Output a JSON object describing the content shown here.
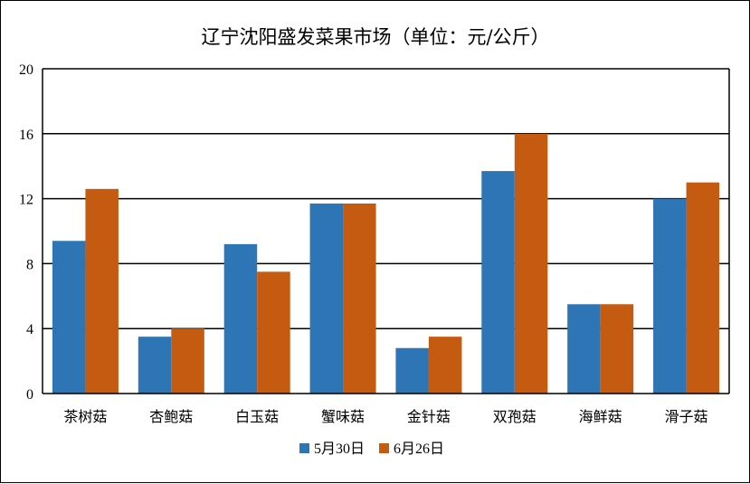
{
  "chart_data": {
    "type": "bar",
    "title": "辽宁沈阳盛发菜果市场（单位：元/公斤）",
    "categories": [
      "茶树菇",
      "杏鲍菇",
      "白玉菇",
      "蟹味菇",
      "金针菇",
      "双孢菇",
      "海鲜菇",
      "滑子菇"
    ],
    "series": [
      {
        "name": "5月30日",
        "color": "#2e75b6",
        "values": [
          9.4,
          3.5,
          9.2,
          11.7,
          2.8,
          13.7,
          5.5,
          12.0
        ]
      },
      {
        "name": "6月26日",
        "color": "#c55a11",
        "values": [
          12.6,
          4.0,
          7.5,
          11.7,
          3.5,
          16.0,
          5.5,
          13.0
        ]
      }
    ],
    "ylim": [
      0,
      20
    ],
    "yticks": [
      0,
      4,
      8,
      12,
      16,
      20
    ],
    "grid": true,
    "legend": "bottom"
  }
}
